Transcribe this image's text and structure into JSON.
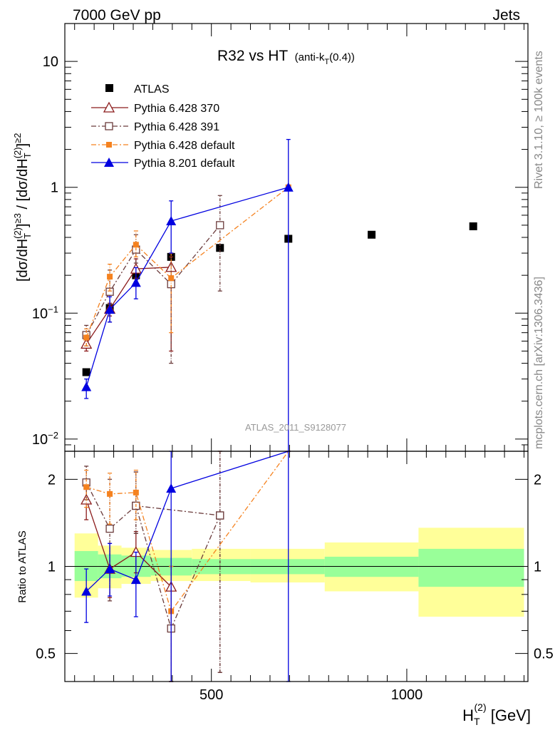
{
  "header": {
    "left": "7000 GeV pp",
    "right": "Jets"
  },
  "side_labels": {
    "rivet": "Rivet 3.1.10, ≥ 100k events",
    "mcplots": "mcplots.cern.ch [arXiv:1306.3436]"
  },
  "watermark": "ATLAS_2011_S9128077",
  "colors": {
    "atlas": "#000000",
    "py370": "#8b1a1a",
    "py391": "#6b3b3b",
    "py6def": "#f5821f",
    "py8def": "#0000e0",
    "band_inner": "#99ff99",
    "band_outer": "#ffff99"
  },
  "chart_data": [
    {
      "type": "scatter",
      "panel": "main",
      "title": "R32 vs HT",
      "title_suffix": "(anti-k",
      "title_sub": "T",
      "title_end": "(0.4))",
      "ylabel": "[dσ/dH_T^(2)]^≥3 / [dσ/dH_T^(2)]^≥2",
      "yscale": "log",
      "ylim": [
        0.008,
        20
      ],
      "xlim": [
        125,
        1310
      ],
      "y_ticks": [
        {
          "value": 10,
          "label": "10"
        },
        {
          "value": 1,
          "label": "1"
        },
        {
          "value": 0.1,
          "label": "10",
          "sup": "−1"
        },
        {
          "value": 0.01,
          "label": "10",
          "sup": "−2"
        }
      ],
      "legend_position": "top-left",
      "series": [
        {
          "name": "ATLAS",
          "key": "atlas",
          "marker": "square-filled",
          "line": "none",
          "x": [
            180,
            240,
            307,
            397,
            522,
            697,
            910,
            1170
          ],
          "y": [
            0.034,
            0.11,
            0.2,
            0.28,
            0.33,
            0.39,
            0.42,
            0.49
          ]
        },
        {
          "name": "Pythia 6.428 370",
          "key": "py370",
          "marker": "triangle-open",
          "line": "solid",
          "x": [
            180,
            240,
            307,
            397
          ],
          "y": [
            0.057,
            0.108,
            0.225,
            0.232
          ],
          "yerr_low": [
            0.05,
            0.095,
            0.19,
            0.05
          ],
          "yerr_high": [
            0.065,
            0.12,
            0.27,
            0.28
          ]
        },
        {
          "name": "Pythia 6.428 391",
          "key": "py391",
          "marker": "square-open",
          "line": "dashdot",
          "x": [
            180,
            240,
            307,
            397,
            522
          ],
          "y": [
            0.067,
            0.148,
            0.32,
            0.17,
            0.5
          ],
          "yerr_low": [
            0.055,
            0.085,
            0.25,
            0.04,
            0.15
          ],
          "yerr_high": [
            0.08,
            0.22,
            0.42,
            0.3,
            0.86
          ]
        },
        {
          "name": "Pythia 6.428 default",
          "key": "py6def",
          "marker": "square-filled",
          "line": "dashdot",
          "x": [
            180,
            240,
            307,
            397,
            697
          ],
          "y": [
            0.064,
            0.195,
            0.35,
            0.19,
            1.0
          ],
          "yerr_low": [
            0.055,
            0.15,
            0.28,
            0.07,
            1.0
          ],
          "yerr_high": [
            0.075,
            0.245,
            0.45,
            0.3,
            1.0
          ]
        },
        {
          "name": "Pythia 8.201 default",
          "key": "py8def",
          "marker": "triangle-filled",
          "line": "solid",
          "x": [
            180,
            240,
            307,
            397,
            697
          ],
          "y": [
            0.026,
            0.107,
            0.175,
            0.54,
            1.0
          ],
          "yerr_low": [
            0.021,
            0.085,
            0.13,
            0.3,
            0.001
          ],
          "yerr_high": [
            0.03,
            0.135,
            0.23,
            0.78,
            2.4
          ]
        }
      ]
    },
    {
      "type": "scatter",
      "panel": "ratio",
      "ylabel": "Ratio to ATLAS",
      "xlabel": "H_T^(2) [GeV]",
      "xlabel_main": "H",
      "xlabel_sup": "(2)",
      "xlabel_sub": "T",
      "xlabel_unit": " [GeV]",
      "yscale": "log",
      "ylim": [
        0.4,
        2.5
      ],
      "xlim": [
        125,
        1310
      ],
      "x_ticks": [
        {
          "value": 500,
          "label": "500"
        },
        {
          "value": 1000,
          "label": "1000"
        }
      ],
      "y_ticks": [
        {
          "value": 2,
          "label": "2"
        },
        {
          "value": 1,
          "label": "1"
        },
        {
          "value": 0.5,
          "label": "0.5"
        }
      ],
      "reference_line": 1,
      "bands": {
        "bins": [
          [
            150,
            210
          ],
          [
            210,
            270
          ],
          [
            270,
            345
          ],
          [
            345,
            450
          ],
          [
            450,
            600
          ],
          [
            600,
            790
          ],
          [
            790,
            1030
          ],
          [
            1030,
            1300
          ]
        ],
        "inner_low": [
          0.89,
          0.91,
          0.92,
          0.93,
          0.94,
          0.94,
          0.92,
          0.85
        ],
        "inner_high": [
          1.13,
          1.1,
          1.09,
          1.07,
          1.06,
          1.06,
          1.08,
          1.15
        ],
        "outer_low": [
          0.78,
          0.84,
          0.87,
          0.89,
          0.89,
          0.88,
          0.82,
          0.67
        ],
        "outer_high": [
          1.3,
          1.18,
          1.16,
          1.14,
          1.15,
          1.15,
          1.21,
          1.36
        ]
      },
      "series": [
        {
          "key": "py370",
          "marker": "triangle-open",
          "line": "solid",
          "x": [
            180,
            240,
            307,
            397
          ],
          "y": [
            1.7,
            0.98,
            1.12,
            0.85
          ],
          "yerr_low": [
            1.45,
            0.78,
            0.95,
            0.2
          ],
          "yerr_high": [
            1.95,
            1.2,
            1.32,
            1.0
          ]
        },
        {
          "key": "py391",
          "marker": "square-open",
          "line": "dashdot",
          "x": [
            180,
            240,
            307,
            522
          ],
          "y": [
            1.95,
            1.35,
            1.62,
            1.5
          ],
          "yerr_low": [
            1.7,
            0.76,
            1.3,
            0.43
          ],
          "yerr_high": [
            2.22,
            2.0,
            2.12,
            2.6
          ]
        },
        {
          "key": "py391b",
          "marker": "square-open",
          "line": "dashdot",
          "series_ref": "py391",
          "x": [
            307,
            397,
            522
          ],
          "y": [
            1.62,
            0.61,
            1.5
          ],
          "yerr_low": [
            1.3,
            0.2,
            0.43
          ],
          "yerr_high": [
            2.12,
            1.0,
            2.6
          ]
        },
        {
          "key": "py6def",
          "marker": "square-filled",
          "line": "dashdot",
          "x": [
            180,
            240,
            307,
            397,
            697
          ],
          "y": [
            1.88,
            1.78,
            1.8,
            0.7,
            2.6
          ],
          "yerr_low": [
            1.6,
            1.4,
            1.45,
            0.2,
            2.6
          ],
          "yerr_high": [
            2.15,
            2.1,
            2.15,
            1.0,
            2.6
          ]
        },
        {
          "key": "py8def",
          "marker": "triangle-filled",
          "line": "solid",
          "x": [
            180,
            240,
            307,
            397,
            697
          ],
          "y": [
            0.82,
            0.98,
            0.9,
            1.86,
            2.6
          ],
          "yerr_low": [
            0.64,
            0.79,
            0.67,
            0.2,
            0.2
          ],
          "yerr_high": [
            0.98,
            1.2,
            1.12,
            2.6,
            2.6
          ]
        }
      ]
    }
  ]
}
